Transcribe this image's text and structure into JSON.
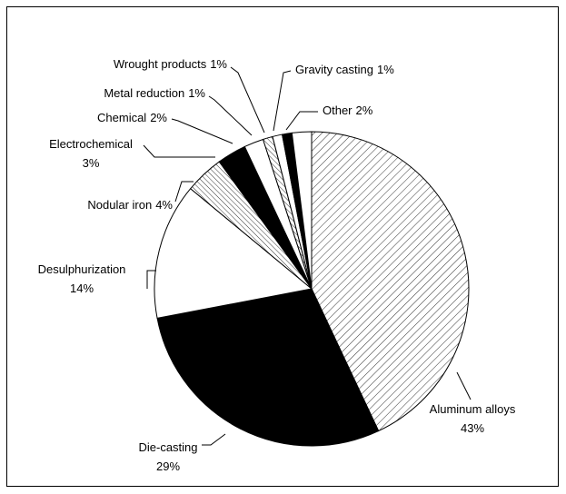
{
  "chart_data": {
    "type": "pie",
    "categories": [
      "Aluminum alloys",
      "Die-casting",
      "Desulphurization",
      "Nodular iron",
      "Electrochemical",
      "Chemical",
      "Metal reduction",
      "Wrought products",
      "Gravity casting",
      "Other"
    ],
    "values": [
      43,
      29,
      14,
      4,
      3,
      2,
      1,
      1,
      1,
      2
    ],
    "value_labels": [
      "43%",
      "29%",
      "14%",
      "4%",
      "3%",
      "2%",
      "1%",
      "1%",
      "1%",
      "2%"
    ],
    "fills": [
      "hatch",
      "#000000",
      "#ffffff",
      "crosshatch",
      "#000000",
      "#ffffff",
      "crosshatch",
      "#ffffff",
      "#000000",
      "#ffffff"
    ]
  }
}
